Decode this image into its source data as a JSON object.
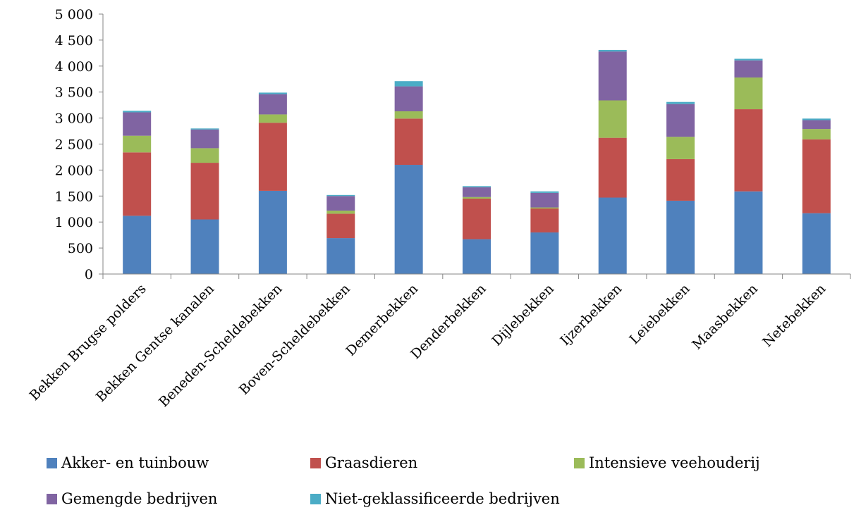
{
  "chart_data": {
    "type": "bar",
    "stacked": true,
    "title": "",
    "xlabel": "",
    "ylabel": "",
    "ylim": [
      0,
      5000
    ],
    "yticks": [
      0,
      500,
      1000,
      1500,
      2000,
      2500,
      3000,
      3500,
      4000,
      4500,
      5000
    ],
    "ytick_labels": [
      "0",
      "500",
      "1 000",
      "1 500",
      "2 000",
      "2 500",
      "3 000",
      "3 500",
      "4 000",
      "4 500",
      "5 000"
    ],
    "grid": false,
    "legend_position": "bottom",
    "categories": [
      "Bekken Brugse polders",
      "Bekken Gentse kanalen",
      "Beneden-Scheldebekken",
      "Boven-Scheldebekken",
      "Demerbekken",
      "Denderbekken",
      "Dijlebekken",
      "Ijzerbekken",
      "Leiebekken",
      "Maasbekken",
      "Netebekken"
    ],
    "series": [
      {
        "name": "Akker- en tuinbouw",
        "color": "#4f81bd",
        "values": [
          1120,
          1050,
          1600,
          690,
          2100,
          670,
          800,
          1470,
          1410,
          1590,
          1170
        ]
      },
      {
        "name": "Graasdieren",
        "color": "#c0504d",
        "values": [
          1220,
          1090,
          1310,
          470,
          890,
          780,
          460,
          1150,
          800,
          1580,
          1420
        ]
      },
      {
        "name": "Intensieve veehouderij",
        "color": "#9bbb59",
        "values": [
          320,
          280,
          160,
          60,
          140,
          30,
          20,
          720,
          430,
          610,
          200
        ]
      },
      {
        "name": "Gemengde bedrijven",
        "color": "#8064a2",
        "values": [
          450,
          360,
          390,
          280,
          480,
          190,
          280,
          940,
          630,
          330,
          170
        ]
      },
      {
        "name": "Niet-geklassificeerde bedrijven",
        "color": "#4bacc6",
        "values": [
          30,
          20,
          30,
          20,
          100,
          20,
          30,
          30,
          40,
          30,
          30
        ]
      }
    ]
  }
}
